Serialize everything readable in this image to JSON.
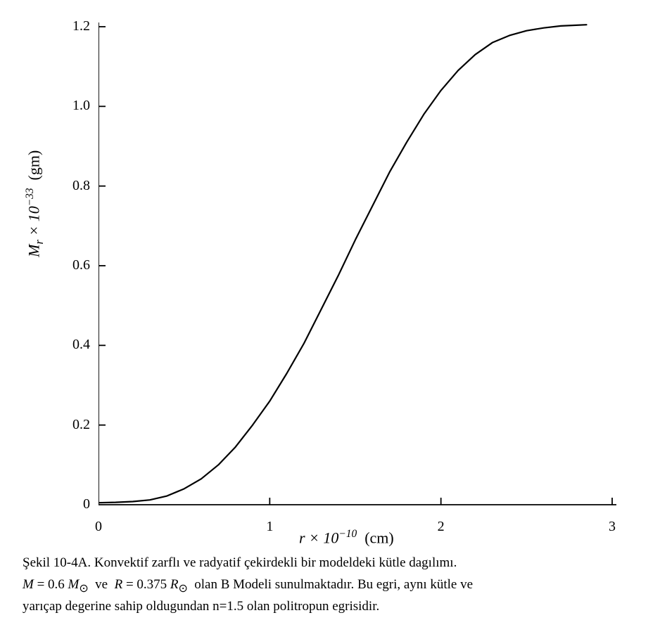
{
  "chart": {
    "type": "line",
    "background_color": "#ffffff",
    "line_color": "#000000",
    "axis_color": "#000000",
    "line_width": 2.2,
    "axis_width": 1.8,
    "tick_length": 10,
    "tick_width": 1.8,
    "xlim": [
      0,
      3
    ],
    "ylim": [
      0,
      1.2
    ],
    "xticks": [
      0,
      1,
      2,
      3
    ],
    "xtick_labels": [
      "0",
      "1",
      "2",
      "3"
    ],
    "yticks": [
      0,
      0.2,
      0.4,
      0.6,
      0.8,
      1.0,
      1.2
    ],
    "ytick_labels": [
      "0",
      "0.2",
      "0.4",
      "0.6",
      "0.8",
      "1.0",
      "1.2"
    ],
    "xlabel_html": "r × 10<span class='sup'>−10</span>&nbsp;&nbsp;<span class='unit'>(cm)</span>",
    "ylabel_html": "M<sub style='font-size:0.75em'>r</sub> × 10<span class='sup'>−33</span>&nbsp;&nbsp;<span class='unit'>(gm)</span>",
    "label_fontsize": 22,
    "tick_fontsize": 20,
    "data": [
      {
        "x": 0.0,
        "y": 0.005
      },
      {
        "x": 0.1,
        "y": 0.006
      },
      {
        "x": 0.2,
        "y": 0.008
      },
      {
        "x": 0.3,
        "y": 0.012
      },
      {
        "x": 0.4,
        "y": 0.022
      },
      {
        "x": 0.5,
        "y": 0.04
      },
      {
        "x": 0.6,
        "y": 0.065
      },
      {
        "x": 0.7,
        "y": 0.1
      },
      {
        "x": 0.8,
        "y": 0.145
      },
      {
        "x": 0.9,
        "y": 0.2
      },
      {
        "x": 1.0,
        "y": 0.26
      },
      {
        "x": 1.1,
        "y": 0.33
      },
      {
        "x": 1.2,
        "y": 0.405
      },
      {
        "x": 1.3,
        "y": 0.49
      },
      {
        "x": 1.4,
        "y": 0.575
      },
      {
        "x": 1.5,
        "y": 0.665
      },
      {
        "x": 1.6,
        "y": 0.75
      },
      {
        "x": 1.7,
        "y": 0.835
      },
      {
        "x": 1.8,
        "y": 0.91
      },
      {
        "x": 1.9,
        "y": 0.98
      },
      {
        "x": 2.0,
        "y": 1.04
      },
      {
        "x": 2.1,
        "y": 1.09
      },
      {
        "x": 2.2,
        "y": 1.13
      },
      {
        "x": 2.3,
        "y": 1.16
      },
      {
        "x": 2.4,
        "y": 1.178
      },
      {
        "x": 2.5,
        "y": 1.19
      },
      {
        "x": 2.6,
        "y": 1.197
      },
      {
        "x": 2.7,
        "y": 1.202
      },
      {
        "x": 2.8,
        "y": 1.204
      },
      {
        "x": 2.85,
        "y": 1.205
      }
    ]
  },
  "caption": {
    "line1": "Şekil 10-4A. Konvektif zarflı ve radyatif çekirdekli bir modeldeki kütle dagılımı.",
    "line2_html": "<span class='math'>M</span> = 0.6 <span class='math'>M</span><sub>⊙</sub>&nbsp;&nbsp;ve&nbsp;&nbsp;<span class='math'>R</span> = 0.375 <span class='math'>R</span><sub>⊙</sub>&nbsp;&nbsp;olan B Modeli sunulmaktadır. Bu egri, aynı kütle ve",
    "line3": "yarıçap degerine sahip oldugundan n=1.5 olan politropun egrisidir.",
    "fontsize": 19
  }
}
